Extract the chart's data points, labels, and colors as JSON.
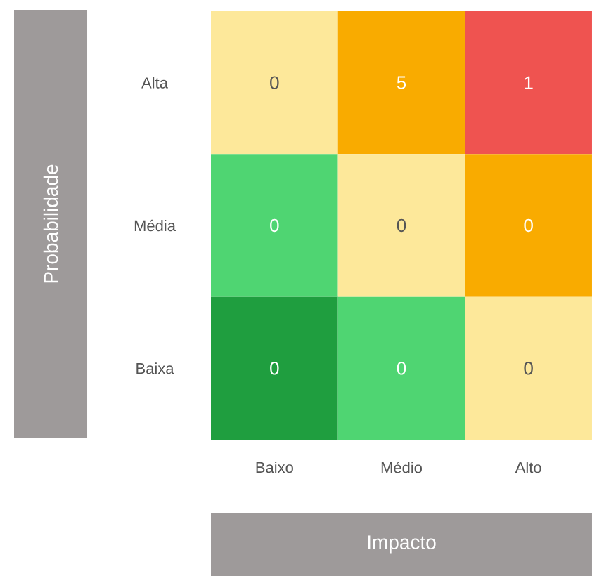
{
  "chart_data": {
    "type": "heatmap",
    "xlabel": "Impacto",
    "ylabel": "Probabilidade",
    "categories": [
      "Baixo",
      "Médio",
      "Alto"
    ],
    "y_categories": [
      "Alta",
      "Média",
      "Baixa"
    ],
    "cells": [
      [
        0,
        5,
        1
      ],
      [
        0,
        0,
        0
      ],
      [
        0,
        0,
        0
      ]
    ],
    "colors": [
      [
        "#fde89a",
        "#f9ab00",
        "#ef5350"
      ],
      [
        "#4fd572",
        "#fde89a",
        "#f9ab00"
      ],
      [
        "#1f9e3f",
        "#4fd572",
        "#fde89a"
      ]
    ],
    "data_labels": true
  }
}
